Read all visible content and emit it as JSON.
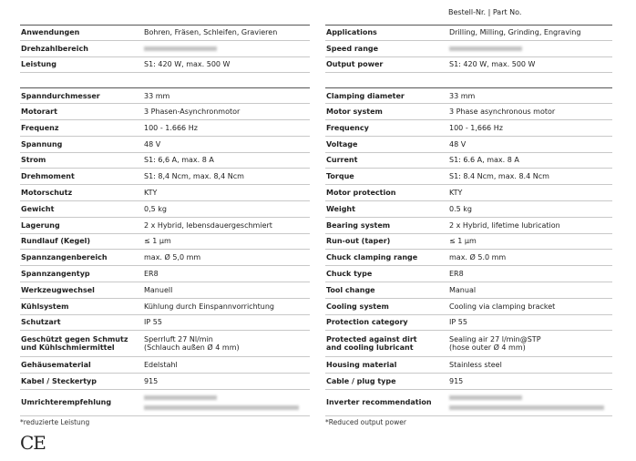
{
  "header": {
    "part_no": "Bestell-Nr. | Part No."
  },
  "tables": [
    {
      "groups": [
        [
          {
            "label": [
              "Anwendungen"
            ],
            "value": [
              "Bohren, Fräsen, Schleifen, Gravieren"
            ]
          },
          {
            "label": [
              "Drehzahlbereich"
            ]
          },
          {
            "label": [
              "Leistung"
            ],
            "value": [
              "S1: 420 W, max. 500 W"
            ]
          }
        ],
        [
          {
            "label": [
              "Spanndurchmesser"
            ],
            "value": [
              "33 mm"
            ]
          },
          {
            "label": [
              "Motorart"
            ],
            "value": [
              "3 Phasen-Asynchronmotor"
            ]
          },
          {
            "label": [
              "Frequenz"
            ],
            "value": [
              "100 - 1.666 Hz"
            ]
          },
          {
            "label": [
              "Spannung"
            ],
            "value": [
              "48 V"
            ]
          },
          {
            "label": [
              "Strom"
            ],
            "value": [
              "S1: 6,6 A, max. 8 A"
            ]
          },
          {
            "label": [
              "Drehmoment"
            ],
            "value": [
              "S1: 8,4 Ncm, max. 8,4 Ncm"
            ]
          },
          {
            "label": [
              "Motorschutz"
            ],
            "value": [
              "KTY"
            ]
          },
          {
            "label": [
              "Gewicht"
            ],
            "value": [
              "0,5 kg"
            ]
          },
          {
            "label": [
              "Lagerung"
            ],
            "value": [
              "2 x Hybrid, lebensdauergeschmiert"
            ]
          },
          {
            "label": [
              "Rundlauf (Kegel)"
            ],
            "value": [
              "≤ 1 µm"
            ]
          },
          {
            "label": [
              "Spannzangenbereich"
            ],
            "value": [
              "max. Ø 5,0 mm"
            ]
          },
          {
            "label": [
              "Spannzangentyp"
            ],
            "value": [
              "ER8"
            ]
          },
          {
            "label": [
              "Werkzeugwechsel"
            ],
            "value": [
              "Manuell"
            ]
          },
          {
            "label": [
              "Kühlsystem"
            ],
            "value": [
              "Kühlung durch Einspannvorrichtung"
            ]
          },
          {
            "label": [
              "Schutzart"
            ],
            "value": [
              "IP 55"
            ]
          },
          {
            "label": [
              "Geschützt gegen Schmutz",
              "und Kühlschmiermittel"
            ],
            "value": [
              "Sperrluft 27 Nl/min",
              "(Schlauch außen Ø 4 mm)"
            ]
          },
          {
            "label": [
              "Gehäusematerial"
            ],
            "value": [
              "Edelstahl"
            ]
          },
          {
            "label": [
              "Kabel / Steckertyp"
            ],
            "value": [
              "915"
            ]
          },
          {
            "label": [
              "Umrichterempfehlung"
            ],
            "lines": 2
          }
        ]
      ],
      "footnote": "*reduzierte Leistung"
    },
    {
      "groups": [
        [
          {
            "label": [
              "Applications"
            ],
            "value": [
              "Drilling, Milling, Grinding, Engraving"
            ]
          },
          {
            "label": [
              "Speed range"
            ]
          },
          {
            "label": [
              "Output power"
            ],
            "value": [
              "S1: 420 W, max. 500 W"
            ]
          }
        ],
        [
          {
            "label": [
              "Clamping diameter"
            ],
            "value": [
              "33 mm"
            ]
          },
          {
            "label": [
              "Motor system"
            ],
            "value": [
              "3 Phase asynchronous motor"
            ]
          },
          {
            "label": [
              "Frequency"
            ],
            "value": [
              "100 - 1,666 Hz"
            ]
          },
          {
            "label": [
              "Voltage"
            ],
            "value": [
              "48 V"
            ]
          },
          {
            "label": [
              "Current"
            ],
            "value": [
              "S1: 6.6 A, max. 8 A"
            ]
          },
          {
            "label": [
              "Torque"
            ],
            "value": [
              "S1: 8.4 Ncm, max. 8.4 Ncm"
            ]
          },
          {
            "label": [
              "Motor protection"
            ],
            "value": [
              "KTY"
            ]
          },
          {
            "label": [
              "Weight"
            ],
            "value": [
              "0.5 kg"
            ]
          },
          {
            "label": [
              "Bearing system"
            ],
            "value": [
              "2 x Hybrid, lifetime lubrication"
            ]
          },
          {
            "label": [
              "Run-out (taper)"
            ],
            "value": [
              "≤ 1 µm"
            ]
          },
          {
            "label": [
              "Chuck clamping range"
            ],
            "value": [
              "max. Ø 5.0 mm"
            ]
          },
          {
            "label": [
              "Chuck type"
            ],
            "value": [
              "ER8"
            ]
          },
          {
            "label": [
              "Tool change"
            ],
            "value": [
              "Manual"
            ]
          },
          {
            "label": [
              "Cooling system"
            ],
            "value": [
              "Cooling via clamping bracket"
            ]
          },
          {
            "label": [
              "Protection category"
            ],
            "value": [
              "IP 55"
            ]
          },
          {
            "label": [
              "Protected against dirt",
              "and cooling lubricant"
            ],
            "value": [
              "Sealing air 27 l/min@STP",
              "(hose outer Ø 4 mm)"
            ]
          },
          {
            "label": [
              "Housing material"
            ],
            "value": [
              "Stainless steel"
            ]
          },
          {
            "label": [
              "Cable / plug type"
            ],
            "value": [
              "915"
            ]
          },
          {
            "label": [
              "Inverter recommendation"
            ],
            "lines": 2
          }
        ]
      ],
      "footnote": "*Reduced output power"
    }
  ],
  "ce_mark": "CE"
}
